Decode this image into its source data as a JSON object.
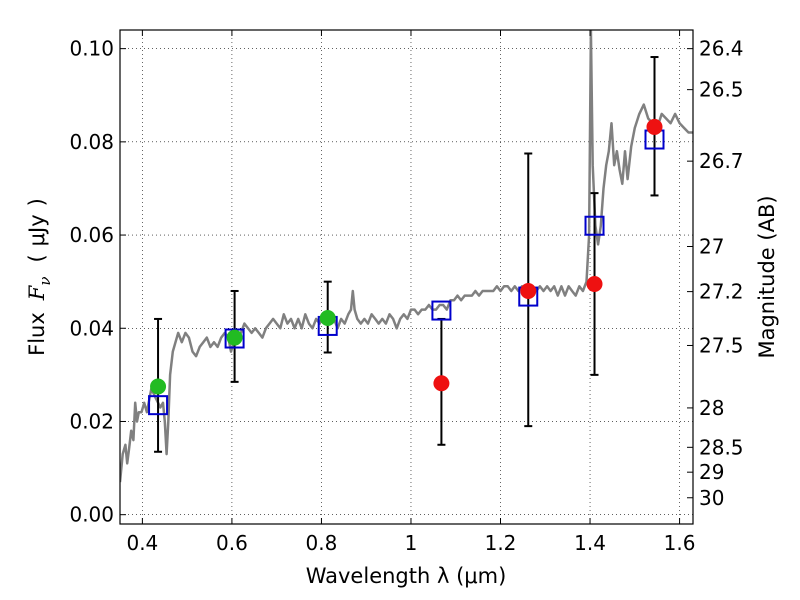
{
  "chart_data": {
    "type": "scatter",
    "xlabel": "Wavelength  λ (μm)",
    "ylabel": "Flux  F_ν  ( μJy )",
    "ylabel_parts": [
      "Flux",
      "F",
      "ν",
      "(",
      "μJy",
      ")"
    ],
    "y2label": "Magnitude (AB)",
    "xlim": [
      0.35,
      1.63
    ],
    "ylim": [
      -0.002,
      0.104
    ],
    "grid": true,
    "x_ticks": [
      {
        "value": 0.4,
        "label": "0.4"
      },
      {
        "value": 0.6,
        "label": "0.6"
      },
      {
        "value": 0.8,
        "label": "0.8"
      },
      {
        "value": 1.0,
        "label": "1"
      },
      {
        "value": 1.2,
        "label": "1.2"
      },
      {
        "value": 1.4,
        "label": "1.4"
      },
      {
        "value": 1.6,
        "label": "1.6"
      }
    ],
    "y_ticks": [
      {
        "value": 0.0,
        "label": "0.00"
      },
      {
        "value": 0.02,
        "label": "0.02"
      },
      {
        "value": 0.04,
        "label": "0.04"
      },
      {
        "value": 0.06,
        "label": "0.06"
      },
      {
        "value": 0.08,
        "label": "0.08"
      },
      {
        "value": 0.1,
        "label": "0.10"
      }
    ],
    "mag_ticks": [
      {
        "label": "26.4",
        "mag": 26.4
      },
      {
        "label": "26.5",
        "mag": 26.5
      },
      {
        "label": "26.7",
        "mag": 26.7
      },
      {
        "label": "27",
        "mag": 27.0
      },
      {
        "label": "27.2",
        "mag": 27.2
      },
      {
        "label": "27.5",
        "mag": 27.5
      },
      {
        "label": "28",
        "mag": 28.0
      },
      {
        "label": "28.5",
        "mag": 28.5
      },
      {
        "label": "29",
        "mag": 29.0
      },
      {
        "label": "30",
        "mag": 30.0
      }
    ],
    "sed_model": {
      "color": "#808080",
      "points": [
        [
          0.35,
          0.007
        ],
        [
          0.356,
          0.013
        ],
        [
          0.362,
          0.015
        ],
        [
          0.366,
          0.011
        ],
        [
          0.37,
          0.014
        ],
        [
          0.375,
          0.018
        ],
        [
          0.38,
          0.016
        ],
        [
          0.384,
          0.024
        ],
        [
          0.388,
          0.02
        ],
        [
          0.392,
          0.022
        ],
        [
          0.398,
          0.022
        ],
        [
          0.404,
          0.024
        ],
        [
          0.41,
          0.022
        ],
        [
          0.416,
          0.025
        ],
        [
          0.42,
          0.027
        ],
        [
          0.425,
          0.026
        ],
        [
          0.43,
          0.025
        ],
        [
          0.435,
          0.024
        ],
        [
          0.44,
          0.023
        ],
        [
          0.446,
          0.024
        ],
        [
          0.45,
          0.02
        ],
        [
          0.454,
          0.013
        ],
        [
          0.458,
          0.02
        ],
        [
          0.462,
          0.03
        ],
        [
          0.468,
          0.035
        ],
        [
          0.474,
          0.037
        ],
        [
          0.48,
          0.039
        ],
        [
          0.488,
          0.037
        ],
        [
          0.496,
          0.039
        ],
        [
          0.504,
          0.038
        ],
        [
          0.512,
          0.035
        ],
        [
          0.52,
          0.034
        ],
        [
          0.528,
          0.036
        ],
        [
          0.536,
          0.037
        ],
        [
          0.544,
          0.038
        ],
        [
          0.552,
          0.036
        ],
        [
          0.56,
          0.037
        ],
        [
          0.568,
          0.036
        ],
        [
          0.576,
          0.038
        ],
        [
          0.584,
          0.039
        ],
        [
          0.592,
          0.038
        ],
        [
          0.598,
          0.035
        ],
        [
          0.604,
          0.037
        ],
        [
          0.612,
          0.038
        ],
        [
          0.62,
          0.039
        ],
        [
          0.628,
          0.041
        ],
        [
          0.636,
          0.04
        ],
        [
          0.644,
          0.039
        ],
        [
          0.652,
          0.04
        ],
        [
          0.66,
          0.039
        ],
        [
          0.668,
          0.038
        ],
        [
          0.676,
          0.04
        ],
        [
          0.684,
          0.041
        ],
        [
          0.692,
          0.042
        ],
        [
          0.7,
          0.041
        ],
        [
          0.708,
          0.04
        ],
        [
          0.716,
          0.043
        ],
        [
          0.724,
          0.041
        ],
        [
          0.732,
          0.042
        ],
        [
          0.74,
          0.04
        ],
        [
          0.748,
          0.042
        ],
        [
          0.756,
          0.04
        ],
        [
          0.764,
          0.043
        ],
        [
          0.772,
          0.041
        ],
        [
          0.78,
          0.04
        ],
        [
          0.788,
          0.042
        ],
        [
          0.796,
          0.041
        ],
        [
          0.804,
          0.043
        ],
        [
          0.812,
          0.042
        ],
        [
          0.82,
          0.041
        ],
        [
          0.828,
          0.042
        ],
        [
          0.836,
          0.04
        ],
        [
          0.844,
          0.042
        ],
        [
          0.852,
          0.041
        ],
        [
          0.86,
          0.043
        ],
        [
          0.866,
          0.044
        ],
        [
          0.87,
          0.048
        ],
        [
          0.874,
          0.044
        ],
        [
          0.88,
          0.042
        ],
        [
          0.888,
          0.041
        ],
        [
          0.896,
          0.042
        ],
        [
          0.904,
          0.041
        ],
        [
          0.912,
          0.043
        ],
        [
          0.92,
          0.042
        ],
        [
          0.928,
          0.041
        ],
        [
          0.936,
          0.042
        ],
        [
          0.944,
          0.041
        ],
        [
          0.952,
          0.043
        ],
        [
          0.96,
          0.042
        ],
        [
          0.968,
          0.04
        ],
        [
          0.976,
          0.042
        ],
        [
          0.984,
          0.043
        ],
        [
          0.992,
          0.042
        ],
        [
          1.0,
          0.044
        ],
        [
          1.008,
          0.044
        ],
        [
          1.016,
          0.043
        ],
        [
          1.024,
          0.044
        ],
        [
          1.032,
          0.044
        ],
        [
          1.04,
          0.045
        ],
        [
          1.048,
          0.044
        ],
        [
          1.056,
          0.044
        ],
        [
          1.064,
          0.045
        ],
        [
          1.072,
          0.045
        ],
        [
          1.08,
          0.044
        ],
        [
          1.088,
          0.046
        ],
        [
          1.096,
          0.046
        ],
        [
          1.104,
          0.047
        ],
        [
          1.112,
          0.046
        ],
        [
          1.12,
          0.047
        ],
        [
          1.128,
          0.047
        ],
        [
          1.136,
          0.047
        ],
        [
          1.144,
          0.048
        ],
        [
          1.152,
          0.047
        ],
        [
          1.16,
          0.048
        ],
        [
          1.168,
          0.048
        ],
        [
          1.176,
          0.048
        ],
        [
          1.184,
          0.048
        ],
        [
          1.192,
          0.049
        ],
        [
          1.2,
          0.048
        ],
        [
          1.208,
          0.049
        ],
        [
          1.216,
          0.049
        ],
        [
          1.224,
          0.048
        ],
        [
          1.232,
          0.049
        ],
        [
          1.24,
          0.048
        ],
        [
          1.248,
          0.049
        ],
        [
          1.256,
          0.048
        ],
        [
          1.264,
          0.047
        ],
        [
          1.272,
          0.049
        ],
        [
          1.28,
          0.048
        ],
        [
          1.288,
          0.049
        ],
        [
          1.296,
          0.048
        ],
        [
          1.304,
          0.049
        ],
        [
          1.312,
          0.048
        ],
        [
          1.32,
          0.049
        ],
        [
          1.328,
          0.047
        ],
        [
          1.336,
          0.049
        ],
        [
          1.344,
          0.047
        ],
        [
          1.352,
          0.049
        ],
        [
          1.36,
          0.048
        ],
        [
          1.368,
          0.047
        ],
        [
          1.376,
          0.049
        ],
        [
          1.384,
          0.048
        ],
        [
          1.392,
          0.05
        ],
        [
          1.398,
          0.06
        ],
        [
          1.402,
          0.104
        ],
        [
          1.406,
          0.075
        ],
        [
          1.412,
          0.062
        ],
        [
          1.418,
          0.058
        ],
        [
          1.424,
          0.062
        ],
        [
          1.43,
          0.07
        ],
        [
          1.436,
          0.075
        ],
        [
          1.442,
          0.078
        ],
        [
          1.448,
          0.084
        ],
        [
          1.454,
          0.075
        ],
        [
          1.46,
          0.078
        ],
        [
          1.466,
          0.074
        ],
        [
          1.472,
          0.071
        ],
        [
          1.478,
          0.078
        ],
        [
          1.484,
          0.072
        ],
        [
          1.492,
          0.079
        ],
        [
          1.5,
          0.083
        ],
        [
          1.51,
          0.086
        ],
        [
          1.52,
          0.088
        ],
        [
          1.53,
          0.085
        ],
        [
          1.54,
          0.084
        ],
        [
          1.55,
          0.083
        ],
        [
          1.56,
          0.086
        ],
        [
          1.57,
          0.085
        ],
        [
          1.58,
          0.084
        ],
        [
          1.59,
          0.086
        ],
        [
          1.6,
          0.084
        ],
        [
          1.61,
          0.083
        ],
        [
          1.62,
          0.082
        ],
        [
          1.63,
          0.082
        ]
      ]
    },
    "series": [
      {
        "marker": "square",
        "color": "#0000cc",
        "points": [
          {
            "x": 0.435,
            "y": 0.0235
          },
          {
            "x": 0.606,
            "y": 0.0378
          },
          {
            "x": 0.814,
            "y": 0.0405
          },
          {
            "x": 1.068,
            "y": 0.0438
          },
          {
            "x": 1.262,
            "y": 0.0468
          },
          {
            "x": 1.41,
            "y": 0.062
          },
          {
            "x": 1.544,
            "y": 0.0805
          }
        ]
      },
      {
        "marker": "circle",
        "color": "#22bb22",
        "points": [
          {
            "x": 0.435,
            "y": 0.0275,
            "yerr_low": 0.0135,
            "yerr_high": 0.042
          },
          {
            "x": 0.606,
            "y": 0.038,
            "yerr_low": 0.0285,
            "yerr_high": 0.048
          },
          {
            "x": 0.814,
            "y": 0.0422,
            "yerr_low": 0.0348,
            "yerr_high": 0.05
          }
        ]
      },
      {
        "marker": "circle",
        "color": "#ee1111",
        "points": [
          {
            "x": 1.068,
            "y": 0.0282,
            "yerr_low": 0.015,
            "yerr_high": 0.042
          },
          {
            "x": 1.262,
            "y": 0.048,
            "yerr_low": 0.019,
            "yerr_high": 0.0775
          },
          {
            "x": 1.41,
            "y": 0.0495,
            "yerr_low": 0.03,
            "yerr_high": 0.069
          },
          {
            "x": 1.544,
            "y": 0.0832,
            "yerr_low": 0.0685,
            "yerr_high": 0.0982
          }
        ]
      }
    ]
  }
}
